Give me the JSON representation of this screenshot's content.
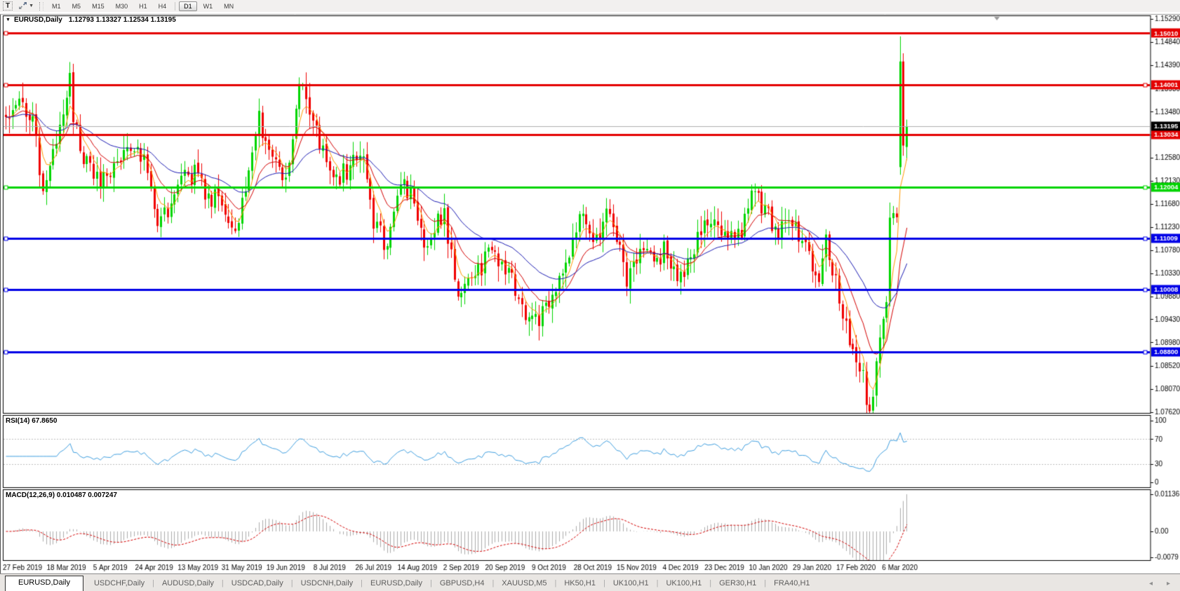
{
  "toolbar": {
    "text_tool_label": "T",
    "timeframes": [
      {
        "label": "M1",
        "active": false
      },
      {
        "label": "M5",
        "active": false
      },
      {
        "label": "M15",
        "active": false
      },
      {
        "label": "M30",
        "active": false
      },
      {
        "label": "H1",
        "active": false
      },
      {
        "label": "H4",
        "active": false
      },
      {
        "label": "D1",
        "active": true
      },
      {
        "label": "W1",
        "active": false
      },
      {
        "label": "MN",
        "active": false
      }
    ]
  },
  "chart": {
    "title_symbol": "EURUSD,Daily",
    "title_quotes": "1.12793 1.13327 1.12534 1.13195",
    "rsi_label": "RSI(14) 67.8650",
    "macd_label": "MACD(12,26,9) 0.010487 0.007247"
  },
  "chart_data": {
    "type": "candlestick",
    "symbol": "EURUSD",
    "timeframe": "Daily",
    "ohlc_current_bar": {
      "open": 1.12793,
      "high": 1.13327,
      "low": 1.12534,
      "close": 1.13195
    },
    "current_price": {
      "label": "1.13195",
      "value": 1.13195
    },
    "ylim": [
      1.07606,
      1.15345
    ],
    "price_ticks": [
      "1.15290",
      "1.14840",
      "1.14390",
      "1.13930",
      "1.13480",
      "1.13030",
      "1.12580",
      "1.12130",
      "1.11680",
      "1.11230",
      "1.10780",
      "1.10330",
      "1.09880",
      "1.09430",
      "1.08980",
      "1.08520",
      "1.08070",
      "1.07620"
    ],
    "hlines": [
      {
        "label": "1.15010",
        "price": 1.1501,
        "color": "#E40000",
        "width": 3,
        "markers": "left"
      },
      {
        "label": "1.14001",
        "price": 1.14001,
        "color": "#E40000",
        "width": 3,
        "markers": "both"
      },
      {
        "label": "1.13034",
        "price": 1.13034,
        "color": "#E40000",
        "width": 3,
        "markers": "none"
      },
      {
        "label": "1.12004",
        "price": 1.12004,
        "color": "#00D400",
        "width": 3,
        "markers": "both"
      },
      {
        "label": "1.11009",
        "price": 1.11009,
        "color": "#0000E6",
        "width": 3,
        "markers": "both"
      },
      {
        "label": "1.10008",
        "price": 1.10008,
        "color": "#0000E6",
        "width": 3,
        "markers": "both"
      },
      {
        "label": "1.08800",
        "price": 1.088,
        "color": "#0000E6",
        "width": 3,
        "markers": "both"
      }
    ],
    "dates": {
      "labels": [
        "27 Feb 2019",
        "18 Mar 2019",
        "5 Apr 2019",
        "24 Apr 2019",
        "13 May 2019",
        "31 May 2019",
        "19 Jun 2019",
        "8 Jul 2019",
        "26 Jul 2019",
        "14 Aug 2019",
        "2 Sep 2019",
        "20 Sep 2019",
        "9 Oct 2019",
        "28 Oct 2019",
        "15 Nov 2019",
        "4 Dec 2019",
        "23 Dec 2019",
        "10 Jan 2020",
        "29 Jan 2020",
        "17 Feb 2020",
        "6 Mar 2020"
      ],
      "first_bar": 5,
      "step": 13
    },
    "bars_total": 268,
    "close_anchors": [
      [
        0,
        1.1338
      ],
      [
        3,
        1.1355
      ],
      [
        5,
        1.1368
      ],
      [
        8,
        1.1322
      ],
      [
        10,
        1.124
      ],
      [
        11,
        1.119
      ],
      [
        13,
        1.1225
      ],
      [
        15,
        1.13
      ],
      [
        19,
        1.1415
      ],
      [
        20,
        1.134
      ],
      [
        22,
        1.129
      ],
      [
        24,
        1.1242
      ],
      [
        27,
        1.1215
      ],
      [
        30,
        1.1225
      ],
      [
        33,
        1.1255
      ],
      [
        36,
        1.128
      ],
      [
        39,
        1.1295
      ],
      [
        42,
        1.122
      ],
      [
        45,
        1.1125
      ],
      [
        48,
        1.116
      ],
      [
        51,
        1.1205
      ],
      [
        54,
        1.122
      ],
      [
        57,
        1.1232
      ],
      [
        60,
        1.1175
      ],
      [
        63,
        1.12
      ],
      [
        65,
        1.1155
      ],
      [
        67,
        1.112
      ],
      [
        69,
        1.114
      ],
      [
        71,
        1.118
      ],
      [
        73,
        1.1255
      ],
      [
        75,
        1.133
      ],
      [
        77,
        1.1305
      ],
      [
        79,
        1.128
      ],
      [
        82,
        1.12
      ],
      [
        84,
        1.1245
      ],
      [
        86,
        1.1355
      ],
      [
        87,
        1.139
      ],
      [
        89,
        1.1372
      ],
      [
        91,
        1.133
      ],
      [
        93,
        1.1285
      ],
      [
        95,
        1.124
      ],
      [
        97,
        1.121
      ],
      [
        99,
        1.1225
      ],
      [
        101,
        1.1235
      ],
      [
        103,
        1.125
      ],
      [
        105,
        1.127
      ],
      [
        107,
        1.121
      ],
      [
        109,
        1.1135
      ],
      [
        111,
        1.111
      ],
      [
        113,
        1.1078
      ],
      [
        115,
        1.115
      ],
      [
        116,
        1.1195
      ],
      [
        118,
        1.1215
      ],
      [
        120,
        1.1185
      ],
      [
        122,
        1.114
      ],
      [
        124,
        1.11
      ],
      [
        126,
        1.1095
      ],
      [
        128,
        1.114
      ],
      [
        130,
        1.115
      ],
      [
        132,
        1.1072
      ],
      [
        134,
        1.0992
      ],
      [
        136,
        1.102
      ],
      [
        138,
        1.104
      ],
      [
        140,
        1.1035
      ],
      [
        142,
        1.1055
      ],
      [
        144,
        1.1075
      ],
      [
        146,
        1.1065
      ],
      [
        148,
        1.104
      ],
      [
        150,
        1.1015
      ],
      [
        152,
        1.0985
      ],
      [
        154,
        1.095
      ],
      [
        156,
        1.093
      ],
      [
        158,
        1.095
      ],
      [
        160,
        1.0978
      ],
      [
        162,
        1.0995
      ],
      [
        164,
        1.102
      ],
      [
        166,
        1.1045
      ],
      [
        168,
        1.1085
      ],
      [
        170,
        1.115
      ],
      [
        172,
        1.113
      ],
      [
        174,
        1.1105
      ],
      [
        176,
        1.1085
      ],
      [
        178,
        1.115
      ],
      [
        180,
        1.111
      ],
      [
        182,
        1.107
      ],
      [
        184,
        1.102
      ],
      [
        186,
        1.104
      ],
      [
        188,
        1.1075
      ],
      [
        190,
        1.1065
      ],
      [
        192,
        1.1058
      ],
      [
        194,
        1.107
      ],
      [
        196,
        1.1078
      ],
      [
        198,
        1.104
      ],
      [
        200,
        1.1022
      ],
      [
        202,
        1.106
      ],
      [
        204,
        1.1085
      ],
      [
        206,
        1.111
      ],
      [
        208,
        1.1135
      ],
      [
        210,
        1.1142
      ],
      [
        212,
        1.1118
      ],
      [
        214,
        1.1092
      ],
      [
        216,
        1.1105
      ],
      [
        218,
        1.1118
      ],
      [
        220,
        1.118
      ],
      [
        221,
        1.1212
      ],
      [
        223,
        1.1175
      ],
      [
        225,
        1.116
      ],
      [
        227,
        1.113
      ],
      [
        229,
        1.1112
      ],
      [
        231,
        1.114
      ],
      [
        233,
        1.1128
      ],
      [
        235,
        1.1102
      ],
      [
        237,
        1.1088
      ],
      [
        239,
        1.1035
      ],
      [
        241,
        1.1008
      ],
      [
        243,
        1.1093
      ],
      [
        245,
        1.1048
      ],
      [
        247,
        1.098
      ],
      [
        248,
        1.0945
      ],
      [
        250,
        1.0912
      ],
      [
        252,
        1.0865
      ],
      [
        254,
        1.083
      ],
      [
        255,
        1.079
      ],
      [
        256,
        1.0782
      ],
      [
        257,
        1.08
      ],
      [
        258,
        1.0848
      ],
      [
        259,
        1.089
      ],
      [
        260,
        1.094
      ],
      [
        261,
        1.099
      ],
      [
        262,
        1.1135
      ],
      [
        263,
        1.117
      ],
      [
        264,
        1.113
      ]
    ],
    "last_candles": {
      "265": {
        "o": 1.124,
        "h": 1.1495,
        "l": 1.1225,
        "c": 1.1446
      },
      "266": {
        "o": 1.1446,
        "h": 1.1462,
        "l": 1.1262,
        "c": 1.1282
      },
      "267": {
        "o": 1.12793,
        "h": 1.13327,
        "l": 1.12534,
        "c": 1.13195
      }
    },
    "indicators": {
      "rsi": {
        "name": "RSI",
        "period": 14,
        "value": "67.8650",
        "levels": [
          70,
          30
        ],
        "ticks": [
          {
            "label": "100",
            "value": 100
          },
          {
            "label": "70",
            "value": 70
          },
          {
            "label": "30",
            "value": 30
          },
          {
            "label": "0",
            "value": 0
          }
        ]
      },
      "macd": {
        "name": "MACD",
        "params": "12,26,9",
        "main_value": "0.010487",
        "signal_value": "0.007247",
        "ticks": [
          {
            "label": "0.011362",
            "value": 0.011362
          },
          {
            "label": "0.00",
            "value": 0.0
          },
          {
            "label": "-0.0079",
            "value": -0.0079
          }
        ]
      },
      "ma_periods": {
        "fast": 5,
        "mid": 13,
        "slow": 34
      }
    },
    "colors": {
      "candle_up": "#00D500",
      "candle_down": "#F00000",
      "ma_fast": "#FF9900",
      "ma_mid": "#D40000",
      "ma_slow": "#1B1BB3",
      "rsi_line": "#3F9FE0",
      "rsi_level": "#BDBDBD",
      "macd_hist": "#ACACAC",
      "macd_signal": "#D40000",
      "current_line": "#B0B0B0",
      "current_box": "#000000"
    }
  },
  "tabs": {
    "items": [
      {
        "label": "EURUSD,Daily",
        "active": true
      },
      {
        "label": "USDCHF,Daily",
        "active": false
      },
      {
        "label": "AUDUSD,Daily",
        "active": false
      },
      {
        "label": "USDCAD,Daily",
        "active": false
      },
      {
        "label": "USDCNH,Daily",
        "active": false
      },
      {
        "label": "EURUSD,Daily",
        "active": false
      },
      {
        "label": "GBPUSD,H4",
        "active": false
      },
      {
        "label": "XAUUSD,M5",
        "active": false
      },
      {
        "label": "HK50,H1",
        "active": false
      },
      {
        "label": "UK100,H1",
        "active": false
      },
      {
        "label": "UK100,H1",
        "active": false
      },
      {
        "label": "GER30,H1",
        "active": false
      },
      {
        "label": "FRA40,H1",
        "active": false
      }
    ],
    "scroll_left_icon": "◂",
    "scroll_right_icon": "▸"
  }
}
